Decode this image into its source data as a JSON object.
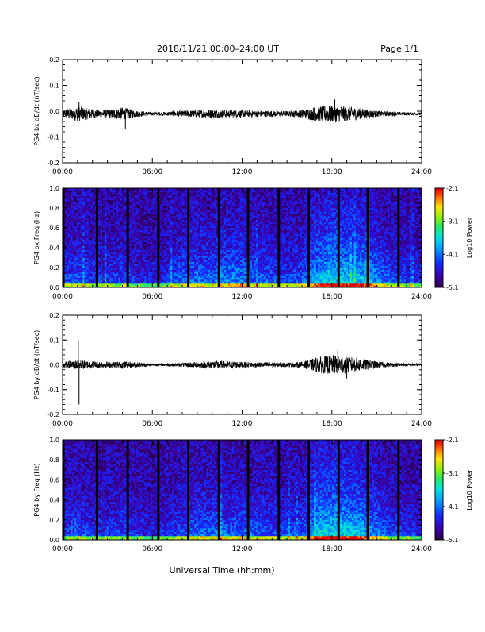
{
  "header": {
    "title": "2018/11/21  00:00–24:00 UT",
    "page": "Page 1/1"
  },
  "footer": {
    "xlabel": "Universal Time (hh:mm)"
  },
  "chart_data": [
    {
      "type": "line",
      "ylabel": "PG4 bx dB/dt (nT/sec)",
      "xlim": [
        "00:00",
        "24:00"
      ],
      "ylim": [
        -0.2,
        0.2
      ],
      "x_ticks": [
        "00:00",
        "06:00",
        "12:00",
        "18:00",
        "24:00"
      ],
      "y_ticks": [
        "0.2",
        "0.1",
        "0.0",
        "-0.1",
        "-0.2"
      ],
      "baseline": -0.01,
      "envelope": {
        "hours": [
          0,
          1,
          2,
          3,
          4,
          5,
          6,
          7,
          8,
          9,
          10,
          11,
          12,
          13,
          14,
          15,
          16,
          17,
          18,
          19,
          20,
          21,
          22,
          23,
          24
        ],
        "amplitude": [
          0.012,
          0.03,
          0.018,
          0.015,
          0.025,
          0.012,
          0.006,
          0.008,
          0.012,
          0.014,
          0.016,
          0.015,
          0.014,
          0.012,
          0.012,
          0.01,
          0.015,
          0.03,
          0.035,
          0.03,
          0.02,
          0.012,
          0.008,
          0.006,
          0.005
        ]
      },
      "spikes": [
        {
          "hour": 1.1,
          "value": 0.035
        },
        {
          "hour": 4.2,
          "value": -0.07
        },
        {
          "hour": 18.2,
          "value": 0.045
        }
      ]
    },
    {
      "type": "heatmap",
      "ylabel": "PG4 bx Freq (Hz)",
      "xlim": [
        "00:00",
        "24:00"
      ],
      "ylim": [
        0.0,
        1.0
      ],
      "x_ticks": [
        "00:00",
        "06:00",
        "12:00",
        "18:00",
        "24:00"
      ],
      "y_ticks": [
        "1.0",
        "0.8",
        "0.6",
        "0.4",
        "0.2",
        "0.0"
      ],
      "colorbar": {
        "label": "Log10 Power",
        "ticks": [
          "-2.1",
          "-3.1",
          "-4.1",
          "-5.1"
        ],
        "min": -5.1,
        "max": -2.1
      },
      "gap_hours": [
        0.05,
        2.3,
        4.35,
        6.4,
        8.4,
        10.45,
        12.4,
        14.45,
        16.45,
        18.45,
        20.4,
        22.45
      ],
      "activity": {
        "hours": [
          0,
          1,
          2,
          3,
          4,
          5,
          6,
          7,
          8,
          9,
          10,
          11,
          12,
          13,
          14,
          15,
          16,
          17,
          18,
          19,
          20,
          21,
          22,
          23,
          24
        ],
        "level": [
          0.35,
          0.4,
          0.3,
          0.3,
          0.35,
          0.25,
          0.2,
          0.3,
          0.45,
          0.5,
          0.45,
          0.55,
          0.55,
          0.45,
          0.4,
          0.35,
          0.4,
          0.7,
          0.8,
          0.75,
          0.7,
          0.55,
          0.4,
          0.3,
          0.25
        ]
      }
    },
    {
      "type": "line",
      "ylabel": "PG4 by dB/dt (nT/sec)",
      "xlim": [
        "00:00",
        "24:00"
      ],
      "ylim": [
        -0.2,
        0.2
      ],
      "x_ticks": [
        "00:00",
        "06:00",
        "12:00",
        "18:00",
        "24:00"
      ],
      "y_ticks": [
        "0.2",
        "0.1",
        "0.0",
        "-0.1",
        "-0.2"
      ],
      "baseline": 0.0,
      "envelope": {
        "hours": [
          0,
          1,
          2,
          3,
          4,
          5,
          6,
          7,
          8,
          9,
          10,
          11,
          12,
          13,
          14,
          15,
          16,
          17,
          18,
          19,
          20,
          21,
          22,
          23,
          24
        ],
        "amplitude": [
          0.012,
          0.02,
          0.015,
          0.012,
          0.015,
          0.01,
          0.005,
          0.006,
          0.008,
          0.012,
          0.016,
          0.015,
          0.012,
          0.01,
          0.01,
          0.008,
          0.012,
          0.03,
          0.04,
          0.035,
          0.025,
          0.014,
          0.008,
          0.006,
          0.005
        ]
      },
      "spikes": [
        {
          "hour": 1.05,
          "value": 0.1
        },
        {
          "hour": 1.1,
          "value": -0.16
        },
        {
          "hour": 18.4,
          "value": 0.06
        },
        {
          "hour": 19.0,
          "value": -0.055
        }
      ]
    },
    {
      "type": "heatmap",
      "ylabel": "PG4 by Freq (Hz)",
      "xlim": [
        "00:00",
        "24:00"
      ],
      "ylim": [
        0.0,
        1.0
      ],
      "x_ticks": [
        "00:00",
        "06:00",
        "12:00",
        "18:00",
        "24:00"
      ],
      "y_ticks": [
        "1.0",
        "0.8",
        "0.6",
        "0.4",
        "0.2",
        "0.0"
      ],
      "colorbar": {
        "label": "Log10 Power",
        "ticks": [
          "-2.1",
          "-3.1",
          "-4.1",
          "-5.1"
        ],
        "min": -5.1,
        "max": -2.1
      },
      "gap_hours": [
        0.05,
        2.3,
        4.35,
        6.4,
        8.4,
        10.45,
        12.4,
        14.45,
        16.45,
        18.45,
        20.4,
        22.45
      ],
      "activity": {
        "hours": [
          0,
          1,
          2,
          3,
          4,
          5,
          6,
          7,
          8,
          9,
          10,
          11,
          12,
          13,
          14,
          15,
          16,
          17,
          18,
          19,
          20,
          21,
          22,
          23,
          24
        ],
        "level": [
          0.35,
          0.4,
          0.3,
          0.3,
          0.35,
          0.25,
          0.2,
          0.25,
          0.4,
          0.45,
          0.45,
          0.45,
          0.45,
          0.4,
          0.35,
          0.35,
          0.4,
          0.75,
          0.8,
          0.75,
          0.7,
          0.5,
          0.35,
          0.3,
          0.25
        ]
      }
    }
  ]
}
